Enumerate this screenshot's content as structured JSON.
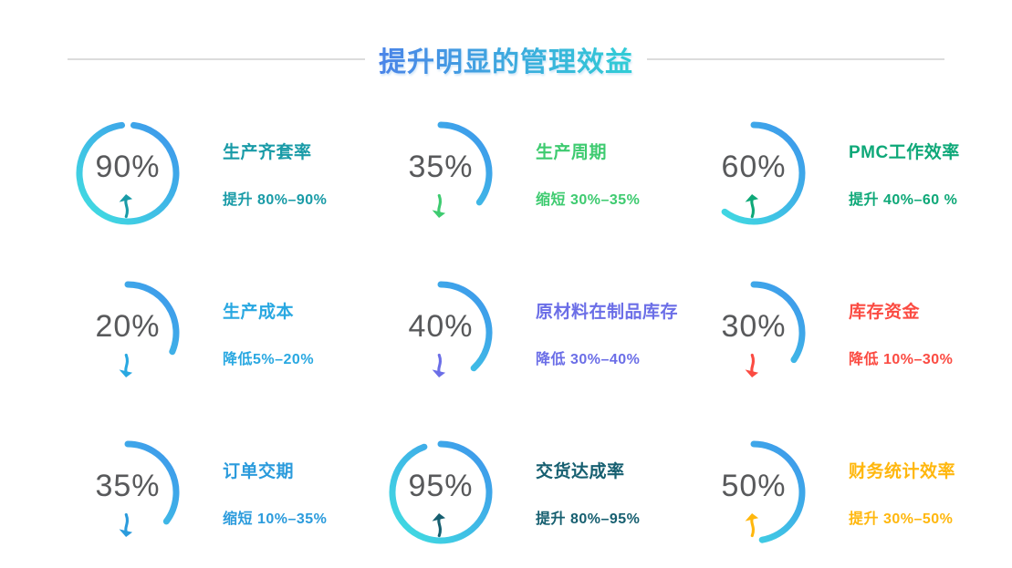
{
  "header": {
    "title": "提升明显的管理效益",
    "title_gradient": [
      "#4B84E8",
      "#30CDD5"
    ],
    "line_color": "#dcdcdc"
  },
  "chart_data": {
    "type": "gauge-grid",
    "columns": 3,
    "rows": 3,
    "ring_gradient": {
      "from": "#3E92EC",
      "to": "#40E2E0"
    },
    "percent_color": "#58595b",
    "gauges": [
      {
        "percent": 90,
        "percent_text": "90%",
        "arc_deg": 346,
        "arc_start_deg": 7,
        "trend": "up",
        "label": "生产齐套率",
        "detail": "提升 80%–90%",
        "color": "#199BA7"
      },
      {
        "percent": 35,
        "percent_text": "35%",
        "arc_deg": 127,
        "arc_start_deg": 0,
        "trend": "down",
        "label": "生产周期",
        "detail": "缩短 30%–35%",
        "color": "#3ECB70"
      },
      {
        "percent": 60,
        "percent_text": "60%",
        "arc_deg": 217,
        "arc_start_deg": 0,
        "trend": "up",
        "label": "PMC工作效率",
        "detail": "提升 40%–60 %",
        "color": "#0EA878"
      },
      {
        "percent": 20,
        "percent_text": "20%",
        "arc_deg": 113,
        "arc_start_deg": 0,
        "trend": "down",
        "label": "生产成本",
        "detail": "降低5%–20%",
        "color": "#29A8E1"
      },
      {
        "percent": 40,
        "percent_text": "40%",
        "arc_deg": 137,
        "arc_start_deg": 0,
        "trend": "down",
        "label": "原材料在制品库存",
        "detail": "降低 30%–40%",
        "color": "#6B6EE7"
      },
      {
        "percent": 30,
        "percent_text": "30%",
        "arc_deg": 124,
        "arc_start_deg": 0,
        "trend": "down",
        "label": "库存资金",
        "detail": "降低 10%–30%",
        "color": "#FB4B42"
      },
      {
        "percent": 35,
        "percent_text": "35%",
        "arc_deg": 127,
        "arc_start_deg": 0,
        "trend": "down",
        "label": "订单交期",
        "detail": "缩短 10%–35%",
        "color": "#2B9BDC"
      },
      {
        "percent": 95,
        "percent_text": "95%",
        "arc_deg": 340,
        "arc_start_deg": 0,
        "trend": "up",
        "label": "交货达成率",
        "detail": "提升 80%–95%",
        "color": "#165F70"
      },
      {
        "percent": 50,
        "percent_text": "50%",
        "arc_deg": 170,
        "arc_start_deg": 0,
        "trend": "up",
        "label": "财务统计效率",
        "detail": "提升 30%–50%",
        "color": "#FFB70D"
      }
    ]
  }
}
